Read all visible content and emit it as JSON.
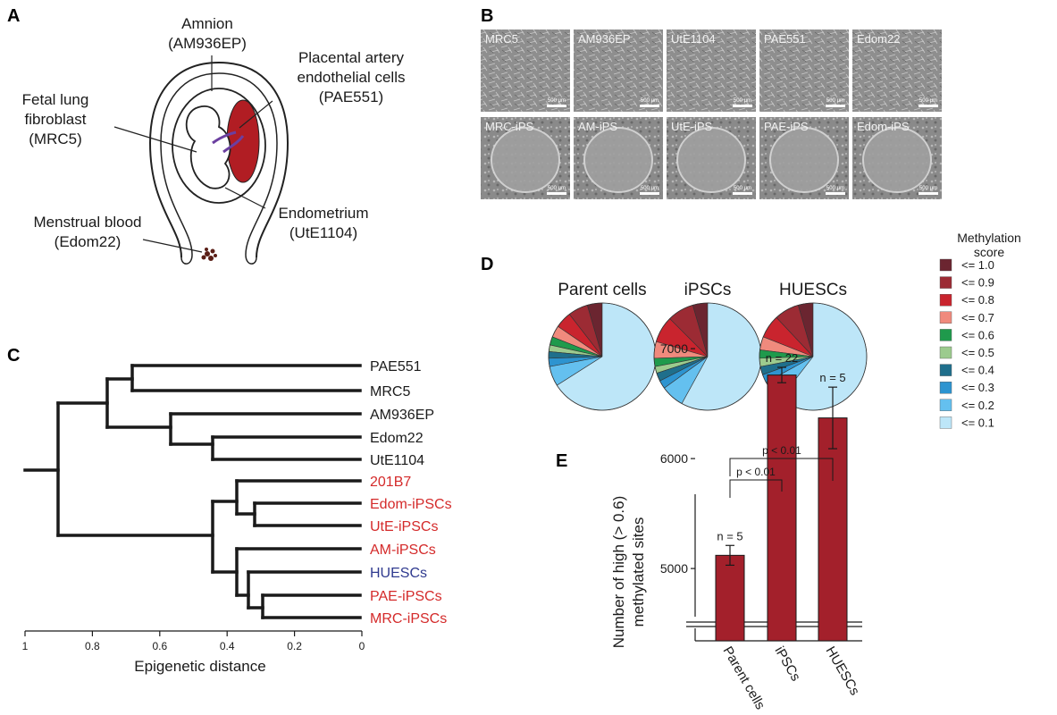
{
  "panel_labels": {
    "a": "A",
    "b": "B",
    "c": "C",
    "d": "D",
    "e": "E"
  },
  "panel_a": {
    "amnion": {
      "line1": "Amnion",
      "line2": "(AM936EP)"
    },
    "placental": {
      "line1": "Placental artery",
      "line2": "endothelial cells",
      "line3": "(PAE551)"
    },
    "fetal": {
      "line1": "Fetal lung",
      "line2": "fibroblast",
      "line3": "(MRC5)"
    },
    "endometrium": {
      "line1": "Endometrium",
      "line2": "(UtE1104)"
    },
    "menstrual": {
      "line1": "Menstrual blood",
      "line2": "(Edom22)"
    }
  },
  "panel_b": {
    "row1": [
      "MRC5",
      "AM936EP",
      "UtE1104",
      "PAE551",
      "Edom22"
    ],
    "row2": [
      "MRC-iPS",
      "AM-iPS",
      "UtE-iPS",
      "PAE-iPS",
      "Edom-iPS"
    ],
    "scale_label": "500 μm"
  },
  "panel_c": {
    "leaves": [
      {
        "label": "PAE551",
        "color": "#1a1a1a"
      },
      {
        "label": "MRC5",
        "color": "#1a1a1a"
      },
      {
        "label": "AM936EP",
        "color": "#1a1a1a"
      },
      {
        "label": "Edom22",
        "color": "#1a1a1a"
      },
      {
        "label": "UtE1104",
        "color": "#1a1a1a"
      },
      {
        "label": "201B7",
        "color": "#d42a2a"
      },
      {
        "label": "Edom-iPSCs",
        "color": "#d42a2a"
      },
      {
        "label": "UtE-iPSCs",
        "color": "#d42a2a"
      },
      {
        "label": "AM-iPSCs",
        "color": "#d42a2a"
      },
      {
        "label": "HUESCs",
        "color": "#2f3a8f"
      },
      {
        "label": "PAE-iPSCs",
        "color": "#d42a2a"
      },
      {
        "label": "MRC-iPSCs",
        "color": "#d42a2a"
      }
    ],
    "ticks": [
      "1",
      "0.8",
      "0.6",
      "0.4",
      "0.2",
      "0"
    ],
    "xlabel": "Epigenetic distance"
  },
  "chart_data": [
    {
      "type": "pie",
      "title": "Parent cells",
      "categories": [
        "<= 1.0",
        "<= 0.9",
        "<= 0.8",
        "<= 0.7",
        "<= 0.6",
        "<= 0.5",
        "<= 0.4",
        "<= 0.3",
        "<= 0.2",
        "<= 0.1"
      ],
      "values": [
        4.5,
        6.0,
        5.0,
        3.5,
        2.5,
        2.0,
        2.0,
        2.5,
        6.0,
        66.0
      ]
    },
    {
      "type": "pie",
      "title": "iPSCs",
      "categories": [
        "<= 1.0",
        "<= 0.9",
        "<= 0.8",
        "<= 0.7",
        "<= 0.6",
        "<= 0.5",
        "<= 0.4",
        "<= 0.3",
        "<= 0.2",
        "<= 0.1"
      ],
      "values": [
        4.5,
        8.0,
        8.0,
        5.0,
        2.5,
        2.0,
        2.5,
        2.5,
        7.0,
        58.0
      ]
    },
    {
      "type": "pie",
      "title": "HUESCs",
      "categories": [
        "<= 1.0",
        "<= 0.9",
        "<= 0.8",
        "<= 0.7",
        "<= 0.6",
        "<= 0.5",
        "<= 0.4",
        "<= 0.3",
        "<= 0.2",
        "<= 0.1"
      ],
      "values": [
        4.5,
        7.5,
        7.0,
        4.0,
        2.5,
        2.5,
        2.5,
        2.5,
        6.5,
        60.5
      ]
    },
    {
      "type": "bar",
      "categories": [
        "Parent cells",
        "iPSCs",
        "HUESCs"
      ],
      "values": [
        5120,
        6760,
        6370
      ],
      "errors": [
        90,
        70,
        280
      ],
      "n_labels": [
        "n = 5",
        "n = 22",
        "n = 5"
      ],
      "ylabel_line1": "Number of high (> 0.6)",
      "ylabel_line2": "methylated sites",
      "yticks": [
        5000,
        6000,
        7000
      ],
      "ylim": [
        4700,
        7000
      ],
      "annotations": [
        "p < 0.01",
        "p < 0.01"
      ]
    }
  ],
  "legend": {
    "title_line1": "Methylation",
    "title_line2": "score",
    "items": [
      "<= 1.0",
      "<= 0.9",
      "<= 0.8",
      "<= 0.7",
      "<= 0.6",
      "<= 0.5",
      "<= 0.4",
      "<= 0.3",
      "<= 0.2",
      "<= 0.1"
    ],
    "colors": [
      "#6b2530",
      "#9c2b34",
      "#c9242e",
      "#f08a7d",
      "#1f9a4c",
      "#9ccb8e",
      "#1f6f8c",
      "#2d94d0",
      "#64c0ef",
      "#bde6f8"
    ]
  },
  "bar_color": "#a3202b"
}
